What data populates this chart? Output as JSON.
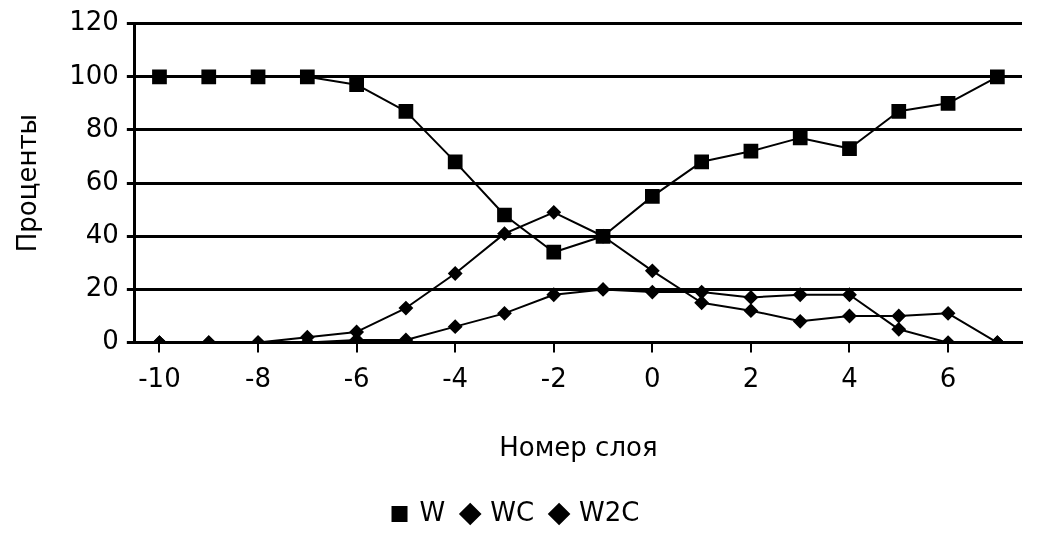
{
  "chart_data": {
    "type": "line",
    "xlabel": "Номер слоя",
    "ylabel": "Проценты",
    "x": [
      -10,
      -9,
      -8,
      -7,
      -6,
      -5,
      -4,
      -3,
      -2,
      -1,
      0,
      1,
      2,
      3,
      4,
      5,
      6,
      7
    ],
    "series": [
      {
        "name": "W",
        "color": "#000000",
        "marker": "square",
        "values": [
          100,
          100,
          100,
          100,
          97,
          87,
          68,
          48,
          34,
          40,
          55,
          68,
          72,
          77,
          73,
          87,
          90,
          100
        ]
      },
      {
        "name": "WC",
        "color": "#000000",
        "marker": "diamond",
        "values": [
          0,
          0,
          0,
          2,
          4,
          13,
          26,
          41,
          49,
          40,
          27,
          15,
          12,
          8,
          10,
          10,
          11,
          0
        ]
      },
      {
        "name": "W2C",
        "color": "#000000",
        "marker": "diamond",
        "values": [
          0,
          0,
          0,
          0,
          1,
          1,
          6,
          11,
          18,
          20,
          19,
          19,
          17,
          18,
          18,
          5,
          0,
          0
        ]
      }
    ],
    "xlim": [
      -10.5,
      7.5
    ],
    "xticks": [
      -10,
      -8,
      -6,
      -4,
      -2,
      0,
      2,
      4,
      6
    ],
    "ylim": [
      0,
      120
    ],
    "yticks": [
      0,
      20,
      40,
      60,
      80,
      100,
      120
    ],
    "grid": "y",
    "legend": "bottom",
    "line_style": "solid"
  }
}
